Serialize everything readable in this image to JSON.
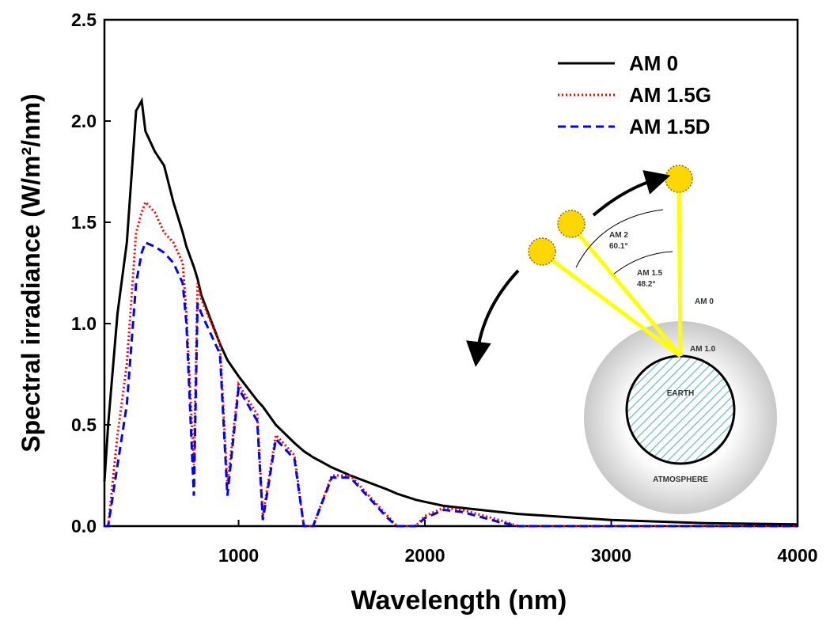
{
  "chart_data": {
    "type": "line",
    "x_label": "Wavelength (nm)",
    "y_label": "Spectral irradiance (W/m²/nm)",
    "x": [
      280,
      300,
      350,
      400,
      450,
      480,
      500,
      550,
      600,
      650,
      700,
      720,
      760,
      780,
      800,
      900,
      940,
      1000,
      1100,
      1130,
      1200,
      1300,
      1350,
      1400,
      1500,
      1600,
      1800,
      1850,
      1950,
      2000,
      2100,
      2200,
      2400,
      2500,
      3000,
      3500,
      4000
    ],
    "series": [
      {
        "name": "AM 0",
        "color": "#000000",
        "style": "solid",
        "values": [
          0.22,
          0.5,
          1.05,
          1.4,
          2.05,
          2.1,
          1.95,
          1.85,
          1.78,
          1.6,
          1.45,
          1.38,
          1.28,
          1.22,
          1.14,
          0.9,
          0.82,
          0.74,
          0.62,
          0.59,
          0.5,
          0.41,
          0.37,
          0.34,
          0.29,
          0.25,
          0.18,
          0.16,
          0.13,
          0.12,
          0.1,
          0.09,
          0.07,
          0.06,
          0.03,
          0.015,
          0.009
        ]
      },
      {
        "name": "AM 1.5G",
        "color": "#ff0000",
        "style": "dotted",
        "values": [
          0,
          0,
          0.45,
          0.8,
          1.45,
          1.55,
          1.6,
          1.55,
          1.45,
          1.4,
          1.3,
          1.05,
          0.3,
          1.2,
          1.12,
          0.9,
          0.2,
          0.7,
          0.55,
          0.05,
          0.45,
          0.35,
          0,
          0,
          0.25,
          0.25,
          0.05,
          0,
          0,
          0.05,
          0.09,
          0.08,
          0.03,
          0,
          0,
          0,
          0
        ]
      },
      {
        "name": "AM 1.5D",
        "color": "#0000ff",
        "style": "dashed",
        "values": [
          0,
          0,
          0.3,
          0.6,
          1.2,
          1.35,
          1.4,
          1.38,
          1.35,
          1.3,
          1.2,
          1.0,
          0.15,
          1.1,
          1.05,
          0.85,
          0.15,
          0.68,
          0.52,
          0.03,
          0.43,
          0.33,
          0,
          0,
          0.24,
          0.24,
          0.04,
          0,
          0,
          0.04,
          0.08,
          0.07,
          0.02,
          0,
          0,
          0,
          0
        ]
      }
    ],
    "xlim": [
      280,
      4000
    ],
    "xticks": [
      1000,
      2000,
      3000,
      4000
    ],
    "ylim": [
      0,
      2.5
    ],
    "yticks": [
      {
        "value": 0,
        "label": "0.0"
      },
      0.5,
      {
        "value": 1,
        "label": "1.0"
      },
      1.5,
      {
        "value": 2,
        "label": "2.0"
      },
      2.5
    ],
    "legend": "upper right",
    "inset": {
      "labels": [
        "AM 2",
        "60.1°",
        "AM 1.5",
        "48.2°",
        "AM 0",
        "AM 1.0",
        "EARTH",
        "ATMOSPHERE"
      ]
    }
  }
}
